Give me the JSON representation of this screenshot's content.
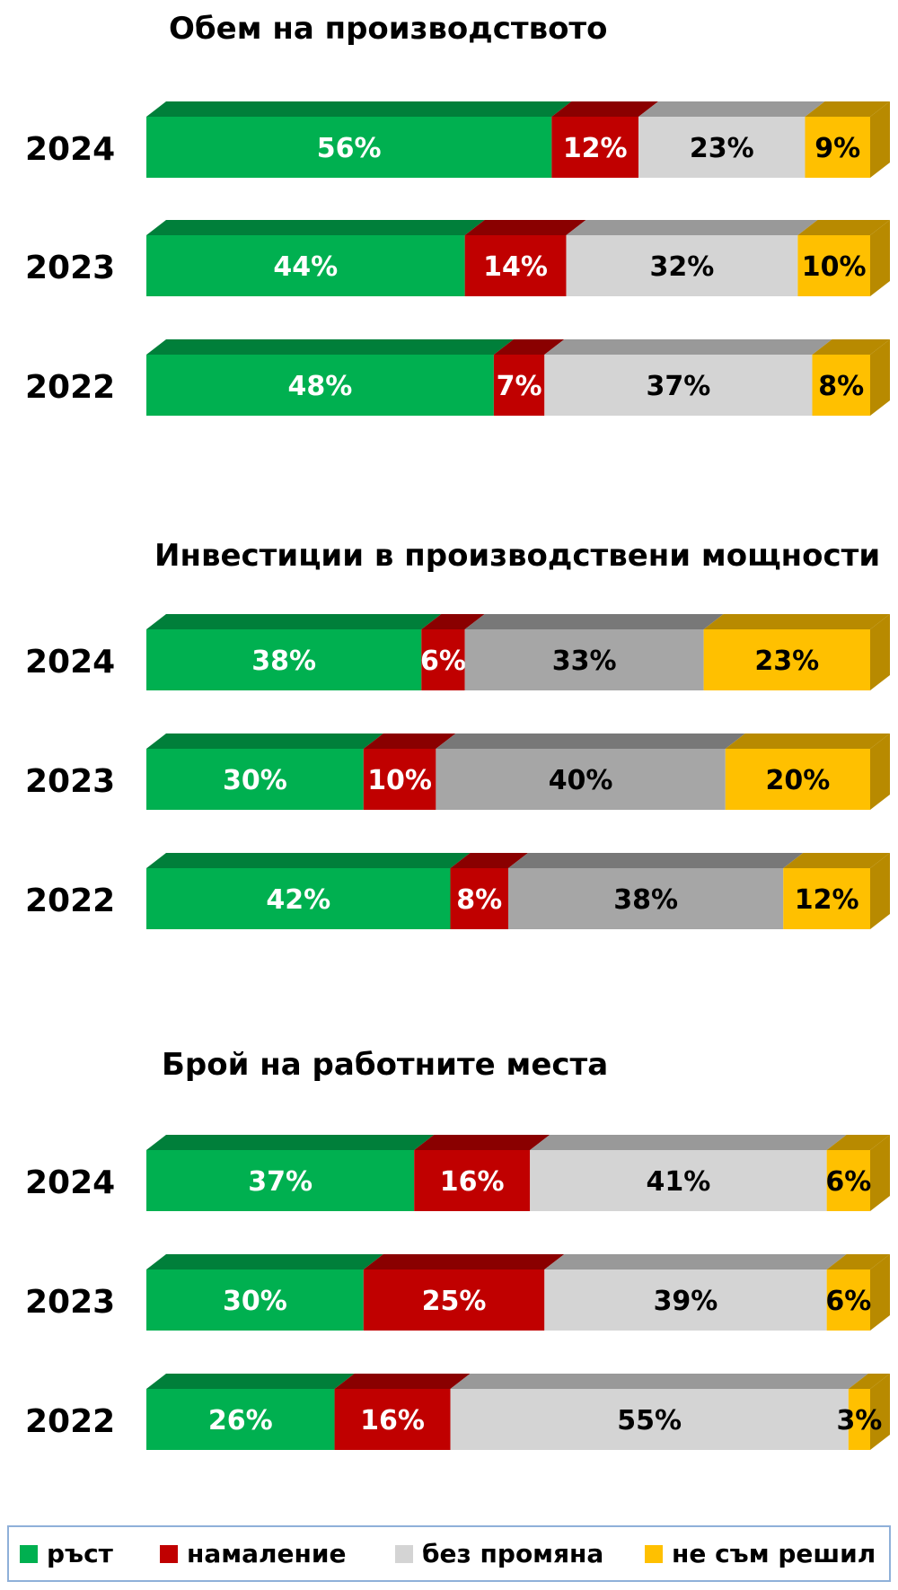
{
  "colors": {
    "growth": "#00b050",
    "decrease": "#c00000",
    "no_change_light": "#d4d4d4",
    "no_change_dark": "#a6a6a6",
    "undecided": "#ffc000"
  },
  "legend": [
    {
      "label": "ръст",
      "color": "#00b050"
    },
    {
      "label": "намаление",
      "color": "#c00000"
    },
    {
      "label": "без промяна",
      "color": "#d4d4d4"
    },
    {
      "label": "не съм решил",
      "color": "#ffc000"
    }
  ],
  "chart_data": [
    {
      "type": "bar",
      "stacked": true,
      "orientation": "horizontal",
      "title": "Обем на производството",
      "categories": [
        "2024",
        "2023",
        "2022"
      ],
      "series": [
        {
          "name": "ръст",
          "values": [
            56,
            44,
            48
          ],
          "color": "#00b050"
        },
        {
          "name": "намаление",
          "values": [
            12,
            14,
            7
          ],
          "color": "#c00000"
        },
        {
          "name": "без промяна",
          "values": [
            23,
            32,
            37
          ],
          "color": "#d4d4d4"
        },
        {
          "name": "не съм решил",
          "values": [
            9,
            10,
            8
          ],
          "color": "#ffc000"
        }
      ],
      "xlim": [
        0,
        100
      ],
      "unit": "%"
    },
    {
      "type": "bar",
      "stacked": true,
      "orientation": "horizontal",
      "title": "Инвестиции в производствени мощности",
      "categories": [
        "2024",
        "2023",
        "2022"
      ],
      "series": [
        {
          "name": "ръст",
          "values": [
            38,
            30,
            42
          ],
          "color": "#00b050"
        },
        {
          "name": "намаление",
          "values": [
            6,
            10,
            8
          ],
          "color": "#c00000"
        },
        {
          "name": "без промяна",
          "values": [
            33,
            40,
            38
          ],
          "color": "#a6a6a6"
        },
        {
          "name": "не съм решил",
          "values": [
            23,
            20,
            12
          ],
          "color": "#ffc000"
        }
      ],
      "xlim": [
        0,
        100
      ],
      "unit": "%"
    },
    {
      "type": "bar",
      "stacked": true,
      "orientation": "horizontal",
      "title": "Брой на работните места",
      "categories": [
        "2024",
        "2023",
        "2022"
      ],
      "series": [
        {
          "name": "ръст",
          "values": [
            37,
            30,
            26
          ],
          "color": "#00b050"
        },
        {
          "name": "намаление",
          "values": [
            16,
            25,
            16
          ],
          "color": "#c00000"
        },
        {
          "name": "без промяна",
          "values": [
            41,
            39,
            55
          ],
          "color": "#d4d4d4"
        },
        {
          "name": "не съм решил",
          "values": [
            6,
            6,
            3
          ],
          "color": "#ffc000"
        }
      ],
      "xlim": [
        0,
        100
      ],
      "unit": "%"
    }
  ]
}
